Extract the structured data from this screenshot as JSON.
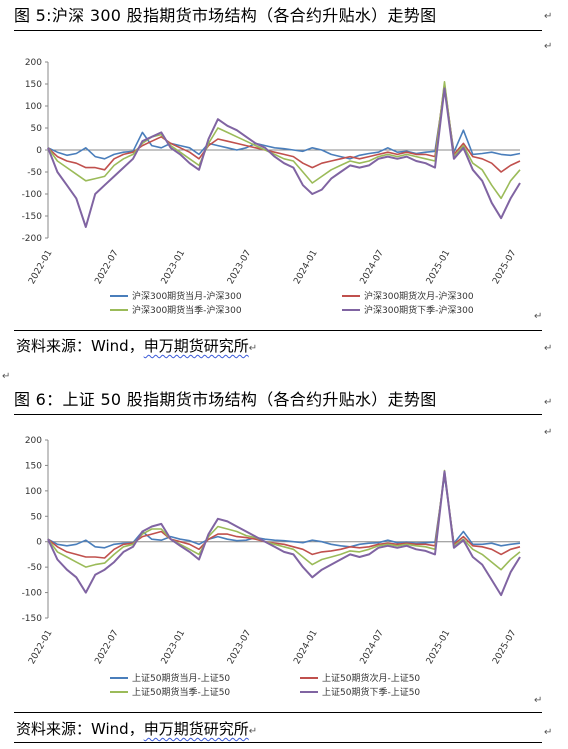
{
  "figure1": {
    "title": "图 5:沪深 300 股指期货市场结构（各合约升贴水）走势图",
    "source_prefix": "资料来源：Wind，",
    "source_link": "申万期货研究所",
    "chart_data": {
      "type": "line",
      "x_labels": [
        "2022-01",
        "2022-07",
        "2023-01",
        "2023-07",
        "2024-01",
        "2024-07",
        "2025-01",
        "2025-07"
      ],
      "yticks": [
        200,
        150,
        100,
        50,
        0,
        -50,
        -100,
        -150,
        -200
      ],
      "ylim": [
        -200,
        200
      ],
      "grid": false,
      "legend_position": "bottom",
      "series": [
        {
          "name": "沪深300期货当月-沪深300",
          "color": "#4a7ebb",
          "x": [
            0,
            2,
            4,
            6,
            8,
            10,
            12,
            14,
            16,
            18,
            20,
            22,
            24,
            26,
            28,
            30,
            32,
            34,
            36,
            38,
            40,
            42,
            44,
            46,
            48,
            50,
            52,
            54,
            56,
            58,
            60,
            62,
            64,
            66,
            68,
            70,
            72,
            74,
            76,
            78,
            80,
            82,
            84,
            86,
            88,
            90,
            92,
            94,
            96,
            98,
            100
          ],
          "values": [
            5,
            -5,
            -12,
            -8,
            5,
            -15,
            -20,
            -10,
            -5,
            -3,
            40,
            10,
            5,
            15,
            10,
            5,
            -10,
            15,
            10,
            5,
            0,
            5,
            15,
            10,
            5,
            3,
            0,
            -3,
            5,
            0,
            -10,
            -15,
            -20,
            -12,
            -8,
            -5,
            5,
            -5,
            -3,
            -8,
            -5,
            -3,
            140,
            -5,
            45,
            -10,
            -8,
            -5,
            -10,
            -12,
            -8
          ]
        },
        {
          "name": "沪深300期货次月-沪深300",
          "color": "#c0504d",
          "x": [
            0,
            2,
            4,
            6,
            8,
            10,
            12,
            14,
            16,
            18,
            20,
            22,
            24,
            26,
            28,
            30,
            32,
            34,
            36,
            38,
            40,
            42,
            44,
            46,
            48,
            50,
            52,
            54,
            56,
            58,
            60,
            62,
            64,
            66,
            68,
            70,
            72,
            74,
            76,
            78,
            80,
            82,
            84,
            86,
            88,
            90,
            92,
            94,
            96,
            98,
            100
          ],
          "values": [
            5,
            -15,
            -25,
            -30,
            -40,
            -40,
            -45,
            -20,
            -10,
            -5,
            10,
            20,
            30,
            15,
            5,
            -5,
            -20,
            10,
            25,
            20,
            15,
            10,
            5,
            0,
            -5,
            -10,
            -15,
            -30,
            -40,
            -30,
            -25,
            -20,
            -15,
            -20,
            -15,
            -10,
            -5,
            -10,
            -5,
            -10,
            -10,
            -15,
            150,
            -10,
            15,
            -15,
            -20,
            -30,
            -50,
            -35,
            -25
          ]
        },
        {
          "name": "沪深300期货当季-沪深300",
          "color": "#9bbb59",
          "x": [
            0,
            2,
            4,
            6,
            8,
            10,
            12,
            14,
            16,
            18,
            20,
            22,
            24,
            26,
            28,
            30,
            32,
            34,
            36,
            38,
            40,
            42,
            44,
            46,
            48,
            50,
            52,
            54,
            56,
            58,
            60,
            62,
            64,
            66,
            68,
            70,
            72,
            74,
            76,
            78,
            80,
            82,
            84,
            86,
            88,
            90,
            92,
            94,
            96,
            98,
            100
          ],
          "values": [
            5,
            -25,
            -40,
            -55,
            -70,
            -65,
            -60,
            -35,
            -20,
            -10,
            15,
            30,
            35,
            10,
            -5,
            -20,
            -35,
            15,
            50,
            40,
            30,
            20,
            10,
            0,
            -10,
            -20,
            -25,
            -50,
            -75,
            -60,
            -45,
            -35,
            -25,
            -30,
            -25,
            -15,
            -10,
            -15,
            -10,
            -15,
            -20,
            -25,
            155,
            -15,
            10,
            -30,
            -45,
            -80,
            -110,
            -70,
            -45
          ]
        },
        {
          "name": "沪深300期货下季-沪深300",
          "color": "#8064a2",
          "x": [
            0,
            2,
            4,
            6,
            8,
            10,
            12,
            14,
            16,
            18,
            20,
            22,
            24,
            26,
            28,
            30,
            32,
            34,
            36,
            38,
            40,
            42,
            44,
            46,
            48,
            50,
            52,
            54,
            56,
            58,
            60,
            62,
            64,
            66,
            68,
            70,
            72,
            74,
            76,
            78,
            80,
            82,
            84,
            86,
            88,
            90,
            92,
            94,
            96,
            98,
            100
          ],
          "values": [
            5,
            -50,
            -80,
            -110,
            -175,
            -100,
            -80,
            -60,
            -40,
            -20,
            20,
            30,
            40,
            5,
            -10,
            -30,
            -45,
            25,
            70,
            55,
            45,
            30,
            15,
            5,
            -15,
            -30,
            -40,
            -80,
            -100,
            -90,
            -65,
            -50,
            -35,
            -40,
            -35,
            -20,
            -15,
            -20,
            -15,
            -25,
            -30,
            -40,
            140,
            -20,
            5,
            -45,
            -70,
            -120,
            -155,
            -110,
            -75
          ]
        }
      ]
    }
  },
  "figure2": {
    "title": "图 6：上证 50 股指期货市场结构（各合约升贴水）走势图",
    "source_prefix": "资料来源：Wind，",
    "source_link": "申万期货研究所",
    "chart_data": {
      "type": "line",
      "x_labels": [
        "2022-01",
        "2022-07",
        "2023-01",
        "2023-07",
        "2024-01",
        "2024-07",
        "2025-01",
        "2025-07"
      ],
      "yticks": [
        200,
        150,
        100,
        50,
        0,
        -50,
        -100,
        -150
      ],
      "ylim": [
        -150,
        200
      ],
      "grid": false,
      "legend_position": "bottom",
      "series": [
        {
          "name": "上证50期货当月-上证50",
          "color": "#4a7ebb",
          "x": [
            0,
            2,
            4,
            6,
            8,
            10,
            12,
            14,
            16,
            18,
            20,
            22,
            24,
            26,
            28,
            30,
            32,
            34,
            36,
            38,
            40,
            42,
            44,
            46,
            48,
            50,
            52,
            54,
            56,
            58,
            60,
            62,
            64,
            66,
            68,
            70,
            72,
            74,
            76,
            78,
            80,
            82,
            84,
            86,
            88,
            90,
            92,
            94,
            96,
            98,
            100
          ],
          "values": [
            5,
            -5,
            -8,
            -5,
            3,
            -10,
            -12,
            -5,
            -3,
            -2,
            20,
            5,
            3,
            10,
            5,
            2,
            -5,
            5,
            10,
            5,
            2,
            3,
            8,
            5,
            3,
            2,
            0,
            -2,
            3,
            0,
            -5,
            -8,
            -10,
            -5,
            -3,
            -2,
            3,
            -2,
            -1,
            -3,
            -2,
            -1,
            130,
            -3,
            20,
            -5,
            -5,
            -3,
            -8,
            -5,
            -3
          ]
        },
        {
          "name": "上证50期货次月-上证50",
          "color": "#c0504d",
          "x": [
            0,
            2,
            4,
            6,
            8,
            10,
            12,
            14,
            16,
            18,
            20,
            22,
            24,
            26,
            28,
            30,
            32,
            34,
            36,
            38,
            40,
            42,
            44,
            46,
            48,
            50,
            52,
            54,
            56,
            58,
            60,
            62,
            64,
            66,
            68,
            70,
            72,
            74,
            76,
            78,
            80,
            82,
            84,
            86,
            88,
            90,
            92,
            94,
            96,
            98,
            100
          ],
          "values": [
            5,
            -10,
            -20,
            -25,
            -30,
            -30,
            -32,
            -15,
            -5,
            -3,
            10,
            15,
            20,
            5,
            0,
            -5,
            -15,
            5,
            15,
            15,
            10,
            8,
            5,
            0,
            -3,
            -5,
            -10,
            -15,
            -25,
            -20,
            -18,
            -15,
            -10,
            -12,
            -10,
            -5,
            -3,
            -5,
            -3,
            -5,
            -5,
            -8,
            135,
            -5,
            10,
            -8,
            -10,
            -15,
            -25,
            -15,
            -10
          ]
        },
        {
          "name": "上证50期货当季-上证50",
          "color": "#9bbb59",
          "x": [
            0,
            2,
            4,
            6,
            8,
            10,
            12,
            14,
            16,
            18,
            20,
            22,
            24,
            26,
            28,
            30,
            32,
            34,
            36,
            38,
            40,
            42,
            44,
            46,
            48,
            50,
            52,
            54,
            56,
            58,
            60,
            62,
            64,
            66,
            68,
            70,
            72,
            74,
            76,
            78,
            80,
            82,
            84,
            86,
            88,
            90,
            92,
            94,
            96,
            98,
            100
          ],
          "values": [
            5,
            -20,
            -30,
            -40,
            -50,
            -45,
            -42,
            -25,
            -10,
            -5,
            15,
            25,
            25,
            5,
            -5,
            -15,
            -25,
            10,
            30,
            25,
            20,
            12,
            8,
            0,
            -5,
            -10,
            -15,
            -30,
            -45,
            -35,
            -30,
            -25,
            -18,
            -20,
            -15,
            -8,
            -5,
            -8,
            -5,
            -8,
            -10,
            -15,
            140,
            -8,
            5,
            -15,
            -25,
            -40,
            -55,
            -35,
            -20
          ]
        },
        {
          "name": "上证50期货下季-上证50",
          "color": "#8064a2",
          "x": [
            0,
            2,
            4,
            6,
            8,
            10,
            12,
            14,
            16,
            18,
            20,
            22,
            24,
            26,
            28,
            30,
            32,
            34,
            36,
            38,
            40,
            42,
            44,
            46,
            48,
            50,
            52,
            54,
            56,
            58,
            60,
            62,
            64,
            66,
            68,
            70,
            72,
            74,
            76,
            78,
            80,
            82,
            84,
            86,
            88,
            90,
            92,
            94,
            96,
            98,
            100
          ],
          "values": [
            5,
            -35,
            -55,
            -70,
            -100,
            -65,
            -55,
            -40,
            -20,
            -10,
            20,
            30,
            35,
            5,
            -8,
            -20,
            -35,
            15,
            45,
            40,
            30,
            20,
            10,
            0,
            -10,
            -20,
            -25,
            -50,
            -70,
            -55,
            -45,
            -35,
            -25,
            -30,
            -25,
            -12,
            -8,
            -12,
            -8,
            -15,
            -18,
            -25,
            138,
            -12,
            3,
            -30,
            -45,
            -75,
            -105,
            -60,
            -30
          ]
        }
      ]
    }
  }
}
